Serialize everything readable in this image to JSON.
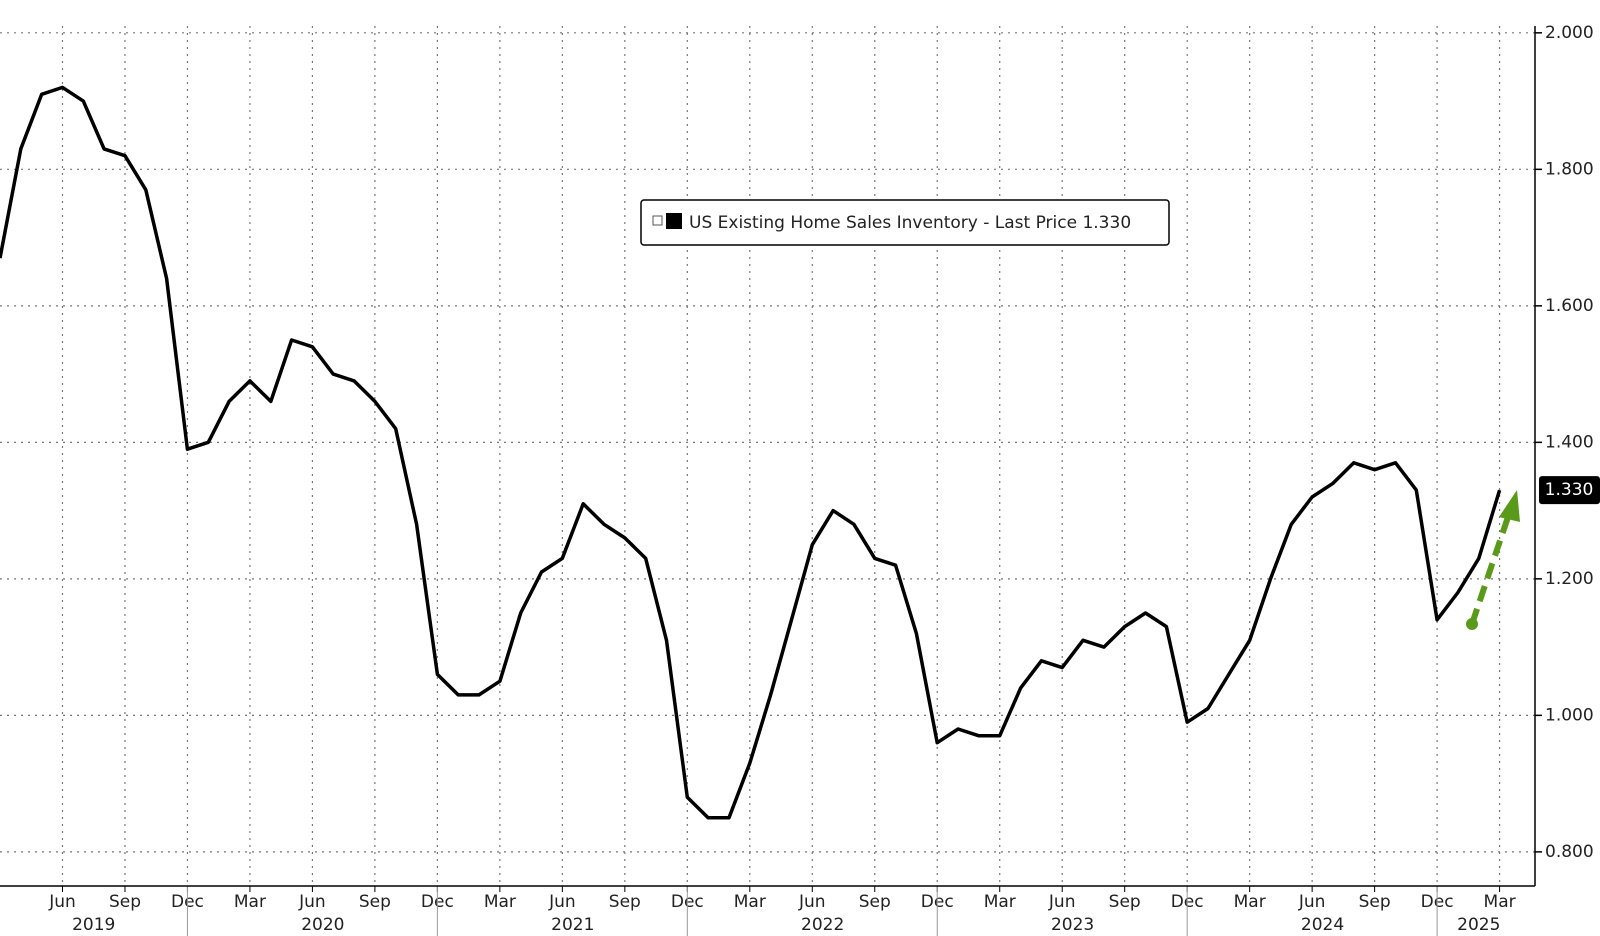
{
  "chart_data": {
    "type": "line",
    "x": [
      "2019-03",
      "2019-04",
      "2019-05",
      "2019-06",
      "2019-07",
      "2019-08",
      "2019-09",
      "2019-10",
      "2019-11",
      "2019-12",
      "2020-01",
      "2020-02",
      "2020-03",
      "2020-04",
      "2020-05",
      "2020-06",
      "2020-07",
      "2020-08",
      "2020-09",
      "2020-10",
      "2020-11",
      "2020-12",
      "2021-01",
      "2021-02",
      "2021-03",
      "2021-04",
      "2021-05",
      "2021-06",
      "2021-07",
      "2021-08",
      "2021-09",
      "2021-10",
      "2021-11",
      "2021-12",
      "2022-01",
      "2022-02",
      "2022-03",
      "2022-04",
      "2022-05",
      "2022-06",
      "2022-07",
      "2022-08",
      "2022-09",
      "2022-10",
      "2022-11",
      "2022-12",
      "2023-01",
      "2023-02",
      "2023-03",
      "2023-04",
      "2023-05",
      "2023-06",
      "2023-07",
      "2023-08",
      "2023-09",
      "2023-10",
      "2023-11",
      "2023-12",
      "2024-01",
      "2024-02",
      "2024-03",
      "2024-04",
      "2024-05",
      "2024-06",
      "2024-07",
      "2024-08",
      "2024-09",
      "2024-10",
      "2024-11",
      "2024-12",
      "2025-01",
      "2025-02",
      "2025-03"
    ],
    "series": [
      {
        "name": "US Existing Home Sales Inventory - Last Price 1.330",
        "color": "#000000",
        "values": [
          1.67,
          1.83,
          1.91,
          1.92,
          1.9,
          1.83,
          1.82,
          1.77,
          1.64,
          1.39,
          1.4,
          1.46,
          1.49,
          1.46,
          1.55,
          1.54,
          1.5,
          1.49,
          1.46,
          1.42,
          1.28,
          1.06,
          1.03,
          1.03,
          1.05,
          1.15,
          1.21,
          1.23,
          1.31,
          1.28,
          1.26,
          1.23,
          1.11,
          0.88,
          0.85,
          0.85,
          0.93,
          1.03,
          1.14,
          1.25,
          1.3,
          1.28,
          1.23,
          1.22,
          1.12,
          0.96,
          0.98,
          0.97,
          0.97,
          1.04,
          1.08,
          1.07,
          1.11,
          1.1,
          1.13,
          1.15,
          1.13,
          0.99,
          1.01,
          1.06,
          1.11,
          1.2,
          1.28,
          1.32,
          1.34,
          1.37,
          1.36,
          1.37,
          1.33,
          1.14,
          1.18,
          1.23,
          1.33
        ]
      }
    ],
    "last_value": {
      "value": 1.33,
      "label": "1.330"
    },
    "ylim": [
      0.75,
      2.01
    ],
    "yticks": [
      {
        "value": 0.8,
        "label": "0.800"
      },
      {
        "value": 1.0,
        "label": "1.000"
      },
      {
        "value": 1.2,
        "label": "1.200"
      },
      {
        "value": 1.4,
        "label": "1.400"
      },
      {
        "value": 1.6,
        "label": "1.600"
      },
      {
        "value": 1.8,
        "label": "1.800"
      },
      {
        "value": 2.0,
        "label": "2.000"
      }
    ],
    "xticks": [
      {
        "value": "2019-06",
        "label": "Jun"
      },
      {
        "value": "2019-09",
        "label": "Sep"
      },
      {
        "value": "2019-12",
        "label": "Dec"
      },
      {
        "value": "2020-03",
        "label": "Mar"
      },
      {
        "value": "2020-06",
        "label": "Jun"
      },
      {
        "value": "2020-09",
        "label": "Sep"
      },
      {
        "value": "2020-12",
        "label": "Dec"
      },
      {
        "value": "2021-03",
        "label": "Mar"
      },
      {
        "value": "2021-06",
        "label": "Jun"
      },
      {
        "value": "2021-09",
        "label": "Sep"
      },
      {
        "value": "2021-12",
        "label": "Dec"
      },
      {
        "value": "2022-03",
        "label": "Mar"
      },
      {
        "value": "2022-06",
        "label": "Jun"
      },
      {
        "value": "2022-09",
        "label": "Sep"
      },
      {
        "value": "2022-12",
        "label": "Dec"
      },
      {
        "value": "2023-03",
        "label": "Mar"
      },
      {
        "value": "2023-06",
        "label": "Jun"
      },
      {
        "value": "2023-09",
        "label": "Sep"
      },
      {
        "value": "2023-12",
        "label": "Dec"
      },
      {
        "value": "2024-03",
        "label": "Mar"
      },
      {
        "value": "2024-06",
        "label": "Jun"
      },
      {
        "value": "2024-09",
        "label": "Sep"
      },
      {
        "value": "2024-12",
        "label": "Dec"
      },
      {
        "value": "2025-03",
        "label": "Mar"
      }
    ],
    "years": [
      "2019",
      "2020",
      "2021",
      "2022",
      "2023",
      "2024",
      "2025"
    ],
    "grid": true
  }
}
